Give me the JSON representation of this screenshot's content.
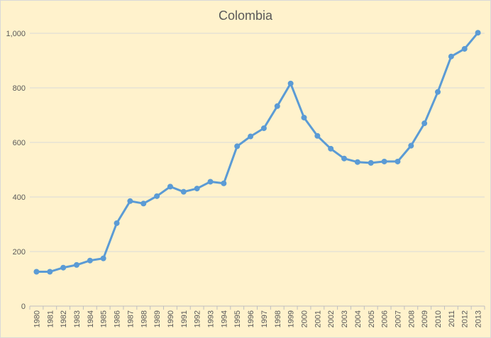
{
  "chart_data": {
    "type": "line",
    "title": "Colombia",
    "xlabel": "",
    "ylabel": "",
    "ylim": [
      0,
      1000
    ],
    "yticks": [
      0,
      200,
      400,
      600,
      800,
      1000
    ],
    "ytick_labels": [
      "0",
      "200",
      "400",
      "600",
      "800",
      "1,000"
    ],
    "grid": true,
    "legend": "none",
    "categories": [
      "1980",
      "1981",
      "1982",
      "1983",
      "1984",
      "1985",
      "1986",
      "1987",
      "1988",
      "1989",
      "1990",
      "1991",
      "1992",
      "1993",
      "1994",
      "1995",
      "1996",
      "1997",
      "1998",
      "1999",
      "2000",
      "2001",
      "2002",
      "2003",
      "2004",
      "2005",
      "2006",
      "2007",
      "2008",
      "2009",
      "2010",
      "2011",
      "2012",
      "2013"
    ],
    "series": [
      {
        "color": "#5b9bd5",
        "values": [
          126,
          126,
          141,
          151,
          167,
          175,
          304,
          385,
          376,
          403,
          438,
          419,
          431,
          456,
          450,
          586,
          622,
          652,
          733,
          816,
          691,
          624,
          577,
          541,
          528,
          525,
          530,
          530,
          588,
          670,
          785,
          915,
          943,
          1002
        ]
      }
    ]
  }
}
